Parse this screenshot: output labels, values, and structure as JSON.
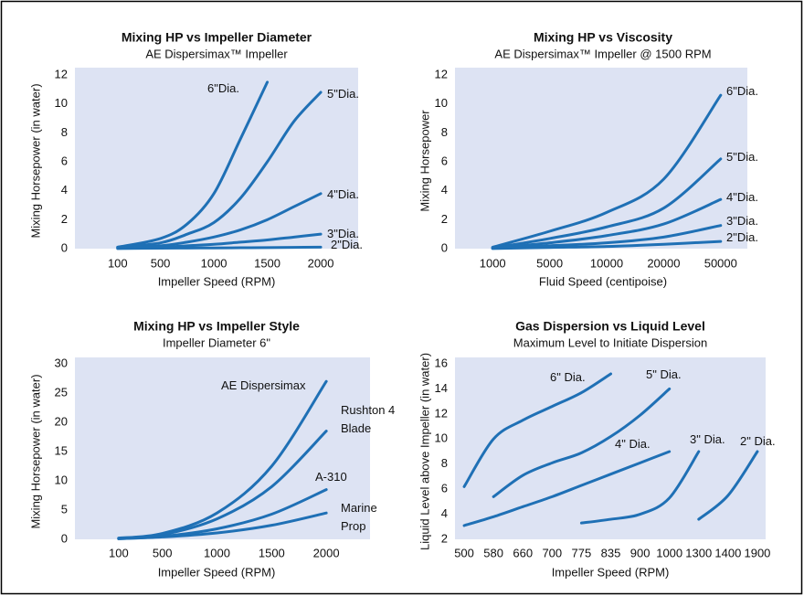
{
  "chart_data": [
    {
      "type": "line",
      "title": "Mixing HP vs Impeller Diameter",
      "subtitle": "AE Dispersimax™ Impeller",
      "x_label": "Impeller Speed (RPM)",
      "y_label": "Mixing Horsepower (in water)",
      "x": [
        100,
        500,
        750,
        1000,
        1250,
        1500,
        1750,
        2000
      ],
      "xlim": [
        -300,
        2350
      ],
      "xticks": [
        100,
        500,
        1000,
        1500,
        2000
      ],
      "ylim": [
        0,
        12
      ],
      "yticks": [
        0,
        2,
        4,
        6,
        8,
        10,
        12
      ],
      "grid": false,
      "series": [
        {
          "name": "6\"Dia.",
          "color": "#1f70b5",
          "values": [
            0.1,
            0.7,
            1.7,
            3.8,
            7.6,
            11.5,
            null,
            null
          ]
        },
        {
          "name": "5\"Dia.",
          "color": "#1f70b5",
          "values": [
            0.1,
            0.4,
            1.0,
            1.8,
            3.5,
            6.0,
            8.8,
            10.8
          ]
        },
        {
          "name": "4\"Dia.",
          "color": "#1f70b5",
          "values": [
            0.05,
            0.2,
            0.45,
            0.8,
            1.3,
            2.0,
            2.9,
            3.8
          ]
        },
        {
          "name": "3\"Dia.",
          "color": "#1f70b5",
          "values": [
            0.02,
            0.1,
            0.2,
            0.3,
            0.45,
            0.6,
            0.8,
            1.0
          ]
        },
        {
          "name": "2\"Dia.",
          "color": "#1f70b5",
          "values": [
            0.01,
            0.03,
            0.04,
            0.05,
            0.06,
            0.07,
            0.09,
            0.1
          ]
        }
      ]
    },
    {
      "type": "line",
      "title": "Mixing HP vs Viscosity",
      "subtitle": "AE Dispersimax™ Impeller @ 1500 RPM",
      "x_label": "Fluid Speed (centipoise)",
      "y_label": "Mixing Horsepower",
      "categories": [
        "1000",
        "5000",
        "10000",
        "20000",
        "50000"
      ],
      "ylim": [
        0,
        12
      ],
      "yticks": [
        0,
        2,
        4,
        6,
        8,
        10,
        12
      ],
      "grid": false,
      "series": [
        {
          "name": "6\"Dia.",
          "color": "#1f70b5",
          "values": [
            0.1,
            1.2,
            2.5,
            4.8,
            10.6
          ]
        },
        {
          "name": "5\"Dia.",
          "color": "#1f70b5",
          "values": [
            0.05,
            0.7,
            1.5,
            2.8,
            6.2
          ]
        },
        {
          "name": "4\"Dia.",
          "color": "#1f70b5",
          "values": [
            0.03,
            0.4,
            0.9,
            1.7,
            3.4
          ]
        },
        {
          "name": "3\"Dia.",
          "color": "#1f70b5",
          "values": [
            0.02,
            0.2,
            0.4,
            0.8,
            1.6
          ]
        },
        {
          "name": "2\"Dia.",
          "color": "#1f70b5",
          "values": [
            0.01,
            0.08,
            0.15,
            0.3,
            0.5
          ]
        }
      ]
    },
    {
      "type": "line",
      "title": "Mixing HP vs Impeller Style",
      "subtitle": "Impeller Diameter 6\"",
      "x_label": "Impeller Speed (RPM)",
      "y_label": "Mixing Horsepower (in water)",
      "x": [
        100,
        500,
        1000,
        1500,
        2000
      ],
      "xlim": [
        -300,
        2400
      ],
      "xticks": [
        100,
        500,
        1000,
        1500,
        2000
      ],
      "ylim": [
        0,
        30
      ],
      "yticks": [
        0,
        5,
        10,
        15,
        20,
        25,
        30
      ],
      "grid": false,
      "series": [
        {
          "name": "AE Dispersimax",
          "color": "#1f70b5",
          "values": [
            0.2,
            1.0,
            4.5,
            12.5,
            27
          ]
        },
        {
          "name": "Rushton 4 Blade",
          "color": "#1f70b5",
          "values": [
            0.2,
            0.8,
            3.5,
            9,
            18.5
          ]
        },
        {
          "name": "A-310",
          "color": "#1f70b5",
          "values": [
            0.1,
            0.5,
            1.8,
            4.3,
            8.5
          ]
        },
        {
          "name": "Marine Prop",
          "color": "#1f70b5",
          "values": [
            0.1,
            0.4,
            1.1,
            2.4,
            4.5
          ]
        }
      ]
    },
    {
      "type": "line",
      "title": "Gas Dispersion vs Liquid Level",
      "subtitle": "Maximum Level to Initiate Dispersion",
      "x_label": "Impeller Speed (RPM)",
      "y_label": "Liquid Level above Impeller (in water)",
      "categories": [
        "500",
        "580",
        "660",
        "700",
        "775",
        "835",
        "900",
        "1000",
        "1300",
        "1400",
        "1900"
      ],
      "ylim": [
        2,
        16
      ],
      "yticks": [
        2,
        4,
        6,
        8,
        10,
        12,
        14,
        16
      ],
      "grid": false,
      "series": [
        {
          "name": "6\" Dia.",
          "color": "#1f70b5",
          "values": [
            6.2,
            10.0,
            11.5,
            12.6,
            13.7,
            15.2,
            null,
            null,
            null,
            null,
            null
          ]
        },
        {
          "name": "5\" Dia.",
          "color": "#1f70b5",
          "values": [
            null,
            5.4,
            7.1,
            8.1,
            8.9,
            10.2,
            11.9,
            14.0,
            null,
            null,
            null
          ]
        },
        {
          "name": "4\" Dia.",
          "color": "#1f70b5",
          "values": [
            3.1,
            3.8,
            4.6,
            5.4,
            6.3,
            7.2,
            8.1,
            9.0,
            null,
            null,
            null
          ]
        },
        {
          "name": "3\" Dia.",
          "color": "#1f70b5",
          "values": [
            null,
            null,
            null,
            null,
            3.3,
            3.6,
            4.0,
            5.3,
            9.0,
            null,
            null
          ]
        },
        {
          "name": "2\" Dia.",
          "color": "#1f70b5",
          "values": [
            null,
            null,
            null,
            null,
            null,
            null,
            null,
            null,
            3.6,
            5.5,
            9.0
          ]
        }
      ]
    }
  ]
}
